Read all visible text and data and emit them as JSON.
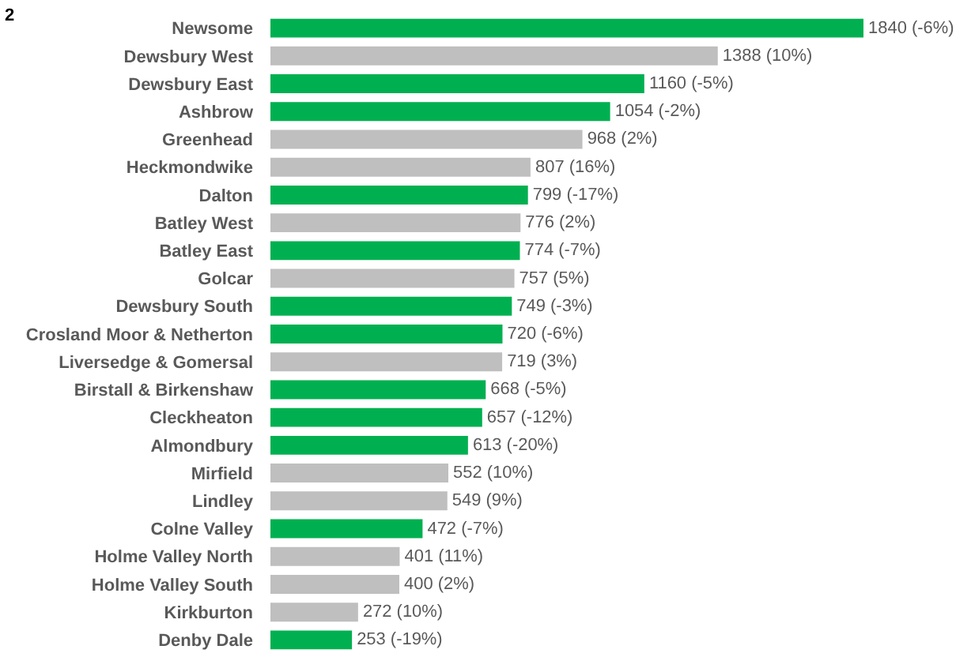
{
  "chart_data": {
    "type": "bar",
    "orientation": "horizontal",
    "tick_labels": "y",
    "categories": [
      "Newsome",
      "Dewsbury West",
      "Dewsbury East",
      "Ashbrow",
      "Greenhead",
      "Heckmondwike",
      "Dalton",
      "Batley West",
      "Batley East",
      "Golcar",
      "Dewsbury South",
      "Crosland Moor & Netherton",
      "Liversedge & Gomersal",
      "Birstall & Birkenshaw",
      "Cleckheaton",
      "Almondbury",
      "Mirfield",
      "Lindley",
      "Colne Valley",
      "Holme Valley North",
      "Holme Valley South",
      "Kirkburton",
      "Denby Dale"
    ],
    "values": [
      1840,
      1388,
      1160,
      1054,
      968,
      807,
      799,
      776,
      774,
      757,
      749,
      720,
      719,
      668,
      657,
      613,
      552,
      549,
      472,
      401,
      400,
      272,
      253
    ],
    "value_labels": [
      "1840 (-6%)",
      "1388 (10%)",
      "1160 (-5%)",
      "1054 (-2%)",
      "968 (2%)",
      "807 (16%)",
      "799 (-17%)",
      "776 (2%)",
      "774 (-7%)",
      "757 (5%)",
      "749 (-3%)",
      "720 (-6%)",
      "719 (3%)",
      "668 (-5%)",
      "657 (-12%)",
      "613 (-20%)",
      "552 (10%)",
      "549 (9%)",
      "472 (-7%)",
      "401 (11%)",
      "400 (2%)",
      "272 (10%)",
      "253 (-19%)"
    ],
    "colors": [
      "#00b050",
      "#bfbfbf",
      "#00b050",
      "#00b050",
      "#bfbfbf",
      "#bfbfbf",
      "#00b050",
      "#bfbfbf",
      "#00b050",
      "#bfbfbf",
      "#00b050",
      "#00b050",
      "#bfbfbf",
      "#00b050",
      "#00b050",
      "#00b050",
      "#bfbfbf",
      "#bfbfbf",
      "#00b050",
      "#bfbfbf",
      "#bfbfbf",
      "#bfbfbf",
      "#00b050"
    ],
    "annotations": [
      "2"
    ]
  }
}
